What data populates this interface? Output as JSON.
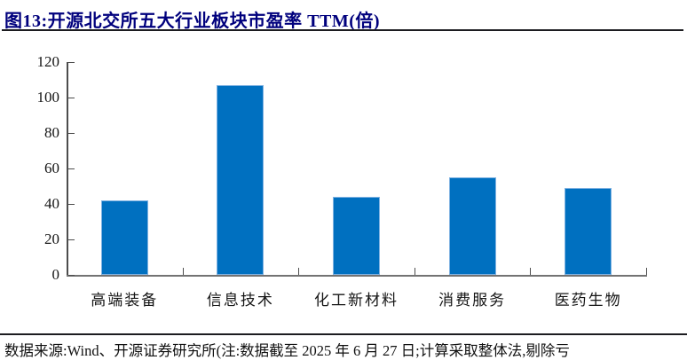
{
  "header": {
    "title": "图13:开源北交所五大行业板块市盈率 TTM(倍)"
  },
  "chart_data": {
    "type": "bar",
    "title": "开源北交所五大行业板块市盈率 TTM(倍)",
    "categories": [
      "高端装备",
      "信息技术",
      "化工新材料",
      "消费服务",
      "医药生物"
    ],
    "values": [
      42,
      107,
      44,
      55,
      49
    ],
    "xlabel": "",
    "ylabel": "",
    "ylim": [
      0,
      120
    ],
    "yticks": [
      0,
      20,
      40,
      60,
      80,
      100,
      120
    ],
    "grid": false,
    "legend_position": "none",
    "bar_color": "#0070C0",
    "bar_edge_color": "#7FB2E2",
    "axis_color": "#4d4d4d",
    "title_color": "#00007d"
  },
  "footer": {
    "source_note": "数据来源:Wind、开源证券研究所(注:数据截至 2025 年 6 月 27 日;计算采取整体法,剔除亏"
  }
}
